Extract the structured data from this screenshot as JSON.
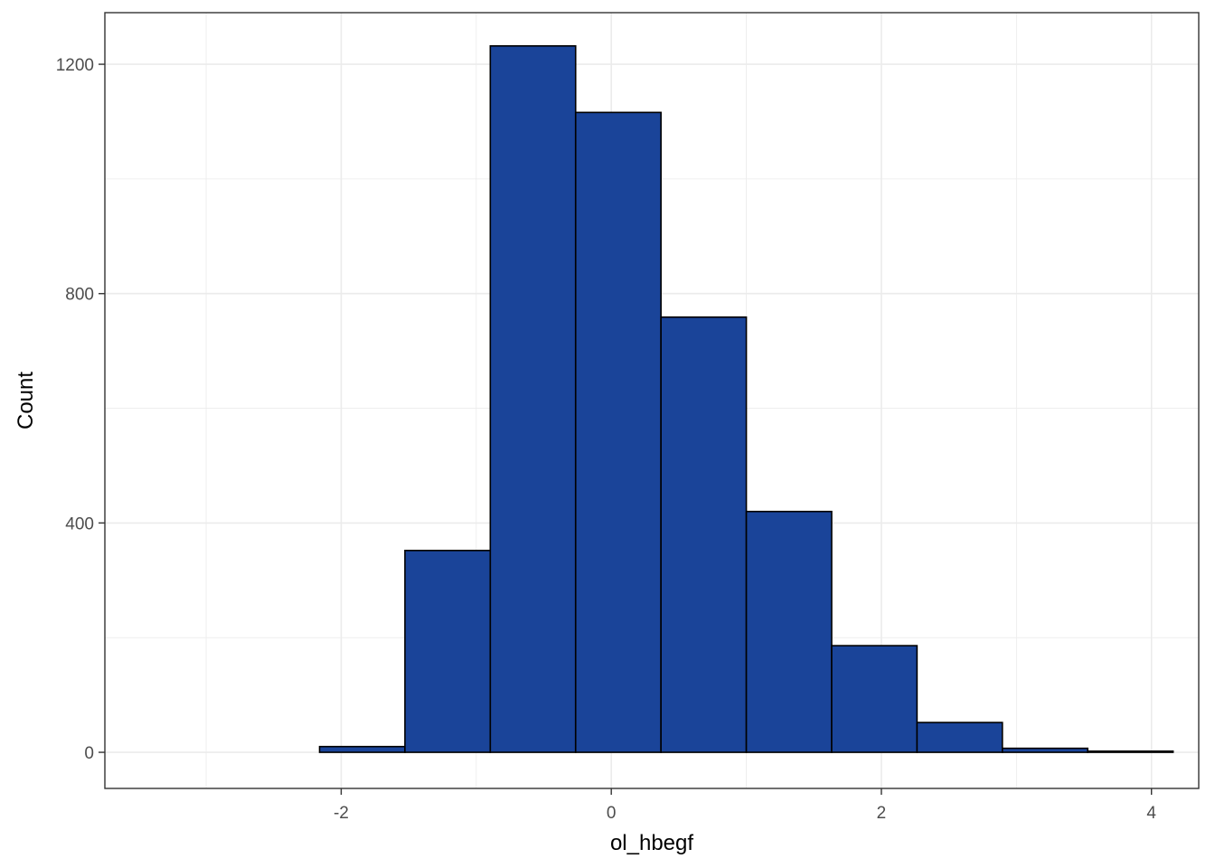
{
  "chart_data": {
    "type": "bar",
    "subtype": "histogram",
    "title": "",
    "xlabel": "ol_hbegf",
    "ylabel": "Count",
    "xlim": [
      -3.75,
      4.35
    ],
    "ylim": [
      -63,
      1290
    ],
    "x_ticks": [
      -2,
      0,
      2,
      4
    ],
    "x_tick_labels": [
      "-2",
      "0",
      "2",
      "4"
    ],
    "y_ticks": [
      0,
      400,
      800,
      1200
    ],
    "y_tick_labels": [
      "0",
      "400",
      "800",
      "1200"
    ],
    "grid": true,
    "bin_width": 0.632,
    "bins": [
      {
        "x0": -3.424,
        "x1": -2.792,
        "count": 0
      },
      {
        "x0": -2.792,
        "x1": -2.16,
        "count": 0
      },
      {
        "x0": -2.16,
        "x1": -1.528,
        "count": 10
      },
      {
        "x0": -1.528,
        "x1": -0.896,
        "count": 352
      },
      {
        "x0": -0.896,
        "x1": -0.264,
        "count": 1232
      },
      {
        "x0": -0.264,
        "x1": 0.368,
        "count": 1116
      },
      {
        "x0": 0.368,
        "x1": 1.0,
        "count": 759
      },
      {
        "x0": 1.0,
        "x1": 1.632,
        "count": 420
      },
      {
        "x0": 1.632,
        "x1": 2.264,
        "count": 186
      },
      {
        "x0": 2.264,
        "x1": 2.896,
        "count": 52
      },
      {
        "x0": 2.896,
        "x1": 3.528,
        "count": 7
      },
      {
        "x0": 3.528,
        "x1": 4.16,
        "count": 2
      }
    ],
    "fill_color": "#1a4499",
    "edge_color": "#000000",
    "grid_color": "#ebebeb",
    "panel_border_color": "#333333"
  }
}
